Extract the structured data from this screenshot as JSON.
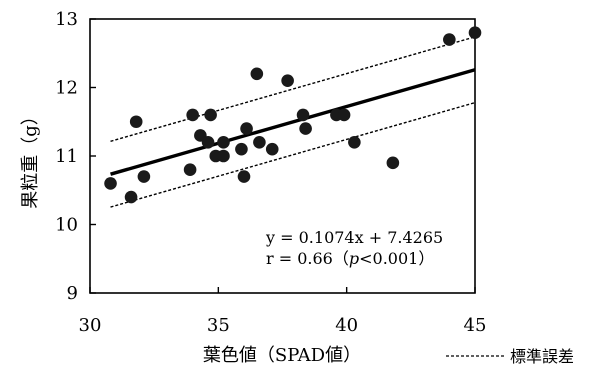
{
  "chart_data": {
    "type": "scatter",
    "title": "",
    "xlabel": "葉色値（SPAD値）",
    "ylabel": "果粒重（g）",
    "xlim": [
      30,
      45
    ],
    "ylim": [
      9,
      13
    ],
    "xticks": [
      "30",
      "35",
      "40",
      "45"
    ],
    "yticks": [
      "9",
      "10",
      "11",
      "12",
      "13"
    ],
    "grid": false,
    "legend": {
      "placement": "bottom-right",
      "label": "標準誤差"
    },
    "annotation": {
      "equation": "y = 0.1074x + 7.4265",
      "r_prefix": "r = 0.66（",
      "r_p": "p",
      "r_suffix": "<0.001）"
    },
    "regression": {
      "slope": 0.1074,
      "intercept": 7.4265,
      "x_range": [
        30.8,
        45.0
      ]
    },
    "error_band": {
      "offset": 0.48
    },
    "points": [
      {
        "x": 30.8,
        "y": 10.6
      },
      {
        "x": 31.6,
        "y": 10.4
      },
      {
        "x": 31.8,
        "y": 11.5
      },
      {
        "x": 32.1,
        "y": 10.7
      },
      {
        "x": 33.9,
        "y": 10.8
      },
      {
        "x": 34.0,
        "y": 11.6
      },
      {
        "x": 34.3,
        "y": 11.3
      },
      {
        "x": 34.6,
        "y": 11.2
      },
      {
        "x": 34.7,
        "y": 11.6
      },
      {
        "x": 34.9,
        "y": 11.0
      },
      {
        "x": 35.2,
        "y": 11.2
      },
      {
        "x": 35.2,
        "y": 11.0
      },
      {
        "x": 35.9,
        "y": 11.1
      },
      {
        "x": 36.0,
        "y": 10.7
      },
      {
        "x": 36.1,
        "y": 11.4
      },
      {
        "x": 36.5,
        "y": 12.2
      },
      {
        "x": 36.6,
        "y": 11.2
      },
      {
        "x": 37.1,
        "y": 11.1
      },
      {
        "x": 37.7,
        "y": 12.1
      },
      {
        "x": 38.3,
        "y": 11.6
      },
      {
        "x": 38.4,
        "y": 11.4
      },
      {
        "x": 39.6,
        "y": 11.6
      },
      {
        "x": 39.9,
        "y": 11.6
      },
      {
        "x": 40.3,
        "y": 11.2
      },
      {
        "x": 41.8,
        "y": 10.9
      },
      {
        "x": 44.0,
        "y": 12.7
      },
      {
        "x": 45.0,
        "y": 12.8
      }
    ]
  }
}
